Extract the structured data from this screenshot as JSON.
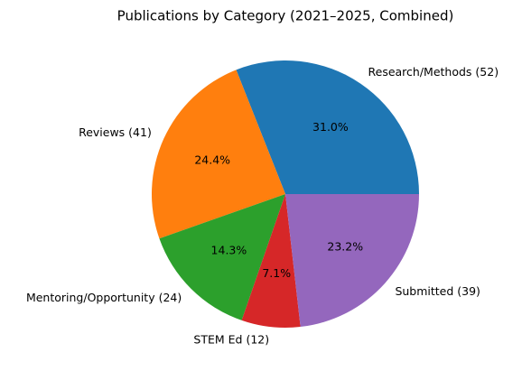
{
  "chart_data": {
    "type": "pie",
    "title": "Publications by Category (2021–2025, Combined)",
    "categories": [
      "Research/Methods (52)",
      "Reviews (41)",
      "Mentoring/Opportunity (24)",
      "STEM Ed (12)",
      "Submitted (39)"
    ],
    "values": [
      31.0,
      24.4,
      14.3,
      7.1,
      23.2
    ],
    "value_labels": [
      "31.0%",
      "24.4%",
      "14.3%",
      "7.1%",
      "23.2%"
    ],
    "colors": [
      "#1f77b4",
      "#ff7f0e",
      "#2ca02c",
      "#d62728",
      "#9467bd"
    ]
  }
}
